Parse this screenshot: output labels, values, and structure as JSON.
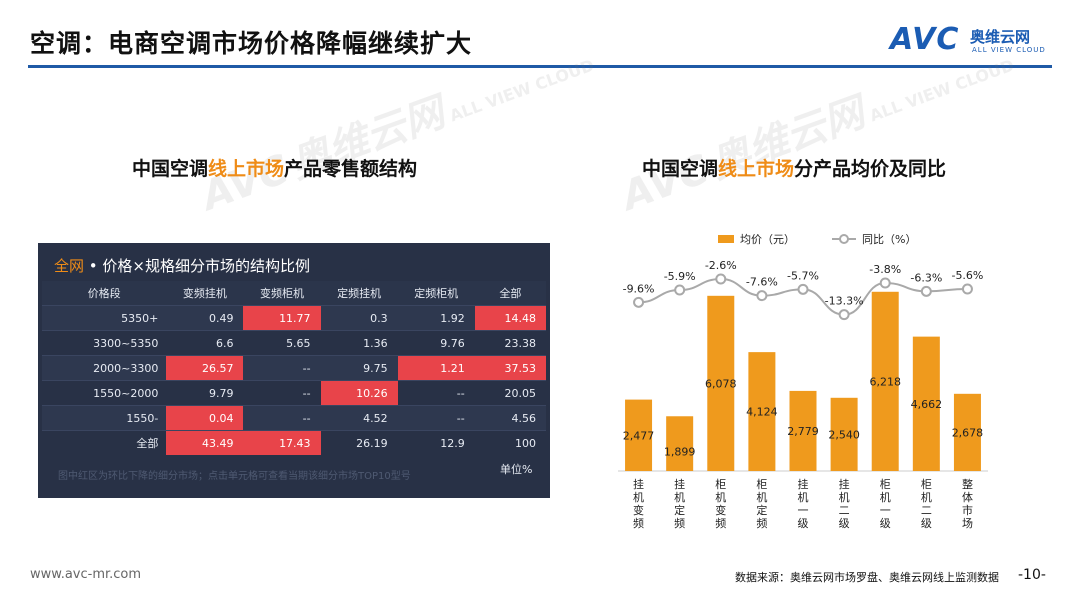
{
  "header": {
    "title": "空调：电商空调市场价格降幅继续扩大",
    "logo_text": "AVC",
    "logo_cn": "奥维云网",
    "logo_en": "ALL VIEW CLOUD"
  },
  "watermark": {
    "brand": "AVC",
    "cn": "奥维云网",
    "en": "ALL VIEW CLOUD"
  },
  "left_title": {
    "pre": "中国空调",
    "highlight": "线上市场",
    "post": "产品零售额结构"
  },
  "right_title": {
    "pre": "中国空调",
    "highlight": "线上市场",
    "post": "分产品均价及同比"
  },
  "table_panel": {
    "scope": "全网",
    "title": " • 价格×规格细分市场的结构比例",
    "headers": [
      "价格段",
      "变频挂机",
      "变频柜机",
      "定频挂机",
      "定频柜机",
      "全部"
    ],
    "rows": [
      [
        "5350+",
        "0.49",
        "11.77",
        "0.3",
        "1.92",
        "14.48"
      ],
      [
        "3300~5350",
        "6.6",
        "5.65",
        "1.36",
        "9.76",
        "23.38"
      ],
      [
        "2000~3300",
        "26.57",
        "--",
        "9.75",
        "1.21",
        "37.53"
      ],
      [
        "1550~2000",
        "9.79",
        "--",
        "10.26",
        "--",
        "20.05"
      ],
      [
        "1550-",
        "0.04",
        "--",
        "4.52",
        "--",
        "4.56"
      ],
      [
        "全部",
        "43.49",
        "17.43",
        "26.19",
        "12.9",
        "100"
      ]
    ],
    "highlighted_cells": [
      [
        0,
        2
      ],
      [
        0,
        5
      ],
      [
        2,
        1
      ],
      [
        2,
        4
      ],
      [
        2,
        5
      ],
      [
        3,
        3
      ],
      [
        4,
        1
      ],
      [
        5,
        1
      ],
      [
        5,
        2
      ]
    ],
    "note": "图中红区为环比下降的细分市场；点击单元格可查看当期该细分市场TOP10型号",
    "unit": "单位%",
    "highlight_color": "#e8444a"
  },
  "chart_data": {
    "type": "bar",
    "categories": [
      "挂机变频",
      "挂机定频",
      "柜机变频",
      "柜机定频",
      "挂机一级",
      "挂机二级",
      "柜机一级",
      "柜机二级",
      "整体市场"
    ],
    "series": [
      {
        "name": "均价（元）",
        "type": "bar",
        "values": [
          2477,
          1899,
          6078,
          4124,
          2779,
          2540,
          6218,
          4662,
          2678
        ],
        "labels": [
          "2,477",
          "1,899",
          "6,078",
          "4,124",
          "2,779",
          "2,540",
          "6,218",
          "4,662",
          "2,678"
        ],
        "color": "#ef9a1d"
      },
      {
        "name": "同比（%）",
        "type": "line",
        "values": [
          -9.6,
          -5.9,
          -2.6,
          -7.6,
          -5.7,
          -13.3,
          -3.8,
          -6.3,
          -5.6
        ],
        "labels": [
          "-9.6%",
          "-5.9%",
          "-2.6%",
          "-7.6%",
          "-5.7%",
          "-13.3%",
          "-3.8%",
          "-6.3%",
          "-5.6%"
        ],
        "color": "#a9a9a9"
      }
    ],
    "legend_position": "top"
  },
  "footer": {
    "url": "www.avc-mr.com",
    "source": "数据来源：奥维云网市场罗盘、奥维云网线上监测数据",
    "page": "-10-"
  }
}
